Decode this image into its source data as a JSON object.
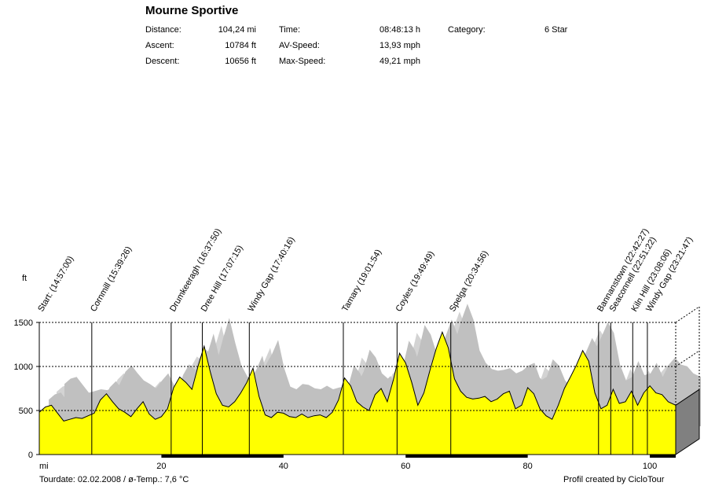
{
  "title": "Mourne Sportive",
  "stats": [
    {
      "label": "Distance:",
      "value": "104,24 mi"
    },
    {
      "label": "Ascent:",
      "value": "10784 ft"
    },
    {
      "label": "Descent:",
      "value": "10656 ft"
    },
    {
      "label": "Time:",
      "value": "08:48:13 h"
    },
    {
      "label": "AV-Speed:",
      "value": "13,93 mph"
    },
    {
      "label": "Max-Speed:",
      "value": "49,21 mph"
    },
    {
      "label": "Category:",
      "value": "6 Star"
    }
  ],
  "footer": {
    "left": "Tourdate: 02.02.2008  /  ø-Temp.: 7,6 °C",
    "right": "Profil created by CicloTour"
  },
  "colors": {
    "fill": "#ffff00",
    "shadow": "#c0c0c0",
    "line": "#000000",
    "box_side": "#808080"
  },
  "chart_data": {
    "type": "area",
    "xlabel": "mi",
    "ylabel": "ft",
    "xlim": [
      0,
      104.24
    ],
    "ylim": [
      0,
      1500
    ],
    "x_ticks": [
      20,
      40,
      60,
      80,
      100
    ],
    "y_ticks": [
      0,
      500,
      1000,
      1500
    ],
    "grid": "dashed horizontal at 500, 1000, 1500",
    "series": [
      {
        "x": [
          0,
          1,
          2,
          3,
          4,
          5,
          6,
          7,
          8,
          9,
          10,
          11,
          12,
          13,
          14,
          15,
          16,
          17,
          18,
          19,
          20,
          21,
          22,
          23,
          24,
          25,
          26,
          27,
          28,
          29,
          30,
          31,
          32,
          33,
          34,
          35,
          36,
          37,
          38,
          39,
          40,
          41,
          42,
          43,
          44,
          45,
          46,
          47,
          48,
          49,
          50,
          51,
          52,
          53,
          54,
          55,
          56,
          57,
          58,
          59,
          60,
          61,
          62,
          63,
          64,
          65,
          66,
          67,
          68,
          69,
          70,
          71,
          72,
          73,
          74,
          75,
          76,
          77,
          78,
          79,
          80,
          81,
          82,
          83,
          84,
          85,
          86,
          87,
          88,
          89,
          90,
          91,
          92,
          93,
          94,
          95,
          96,
          97,
          98,
          99,
          100,
          101,
          102,
          103,
          104.24
        ],
        "y": [
          480,
          540,
          560,
          470,
          380,
          400,
          420,
          410,
          440,
          470,
          620,
          690,
          600,
          520,
          480,
          430,
          520,
          600,
          460,
          400,
          430,
          520,
          760,
          880,
          820,
          740,
          1000,
          1230,
          940,
          690,
          560,
          540,
          600,
          700,
          820,
          980,
          660,
          450,
          420,
          480,
          470,
          430,
          420,
          460,
          420,
          440,
          450,
          420,
          480,
          620,
          870,
          780,
          600,
          540,
          500,
          680,
          750,
          600,
          850,
          1150,
          1040,
          820,
          560,
          700,
          960,
          1200,
          1390,
          1210,
          860,
          720,
          650,
          630,
          640,
          660,
          600,
          630,
          690,
          720,
          520,
          560,
          760,
          690,
          520,
          440,
          400,
          560,
          750,
          880,
          1020,
          1180,
          1060,
          700,
          520,
          560,
          740,
          580,
          600,
          720,
          560,
          700,
          780,
          700,
          680,
          600,
          560
        ]
      }
    ],
    "annotations": [
      {
        "x": 0.0,
        "label": "Start: (14:57:00)"
      },
      {
        "x": 8.6,
        "label": "Cornmill (15:39:26)"
      },
      {
        "x": 21.6,
        "label": "Drumkeeragh (16:37:50)"
      },
      {
        "x": 26.7,
        "label": "Dree Hill (17:07:15)"
      },
      {
        "x": 34.4,
        "label": "Windy Gap (17:40:16)"
      },
      {
        "x": 49.8,
        "label": "Tamary (19:01:54)"
      },
      {
        "x": 58.6,
        "label": "Coyles (19:49:49)"
      },
      {
        "x": 67.4,
        "label": "Spelga (20:34:56)"
      },
      {
        "x": 91.6,
        "label": "Bannanstown (22:42:27)"
      },
      {
        "x": 93.6,
        "label": "Seaconnell (22:51:22)"
      },
      {
        "x": 97.2,
        "label": "Kiln Hill (23:08:06)"
      },
      {
        "x": 99.6,
        "label": "Windy Gap (23:21:47)"
      }
    ]
  }
}
